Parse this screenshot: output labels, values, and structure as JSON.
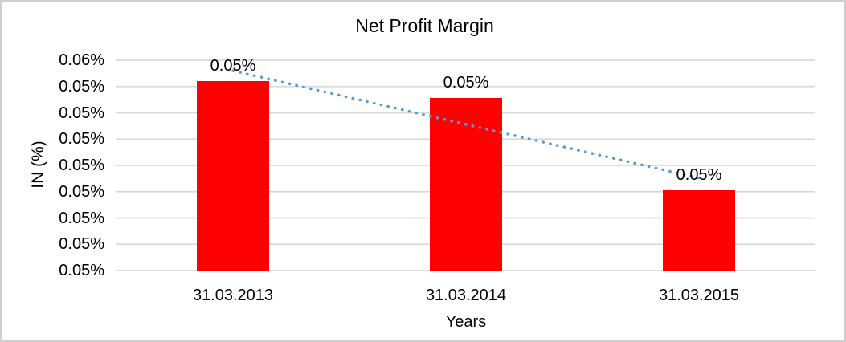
{
  "window": {
    "background_color": "#FFFFFF",
    "border_color": "#D0CECE"
  },
  "chart_data": {
    "type": "bar",
    "title": "Net Profit Margin",
    "xlabel": "Years",
    "ylabel": "IN (%)",
    "categories": [
      "31.03.2013",
      "31.03.2014",
      "31.03.2015"
    ],
    "values": [
      0.055,
      0.0542,
      0.0498
    ],
    "data_labels": [
      "0.05%",
      "0.05%",
      "0.05%"
    ],
    "y_ticks_top_to_bottom": [
      "0.06%",
      "0.05%",
      "0.05%",
      "0.05%",
      "0.05%",
      "0.05%",
      "0.05%",
      "0.05%",
      "0.05%"
    ],
    "ylim": [
      0.046,
      0.056
    ],
    "bar_color": "#FF0000",
    "gridline_color": "#D9D9D9",
    "text_color": "#000000",
    "grid": true,
    "legend": "none",
    "trendline": {
      "style": "dotted",
      "color": "#5B9BD5",
      "start_value": 0.0555,
      "end_value": 0.0504
    }
  }
}
